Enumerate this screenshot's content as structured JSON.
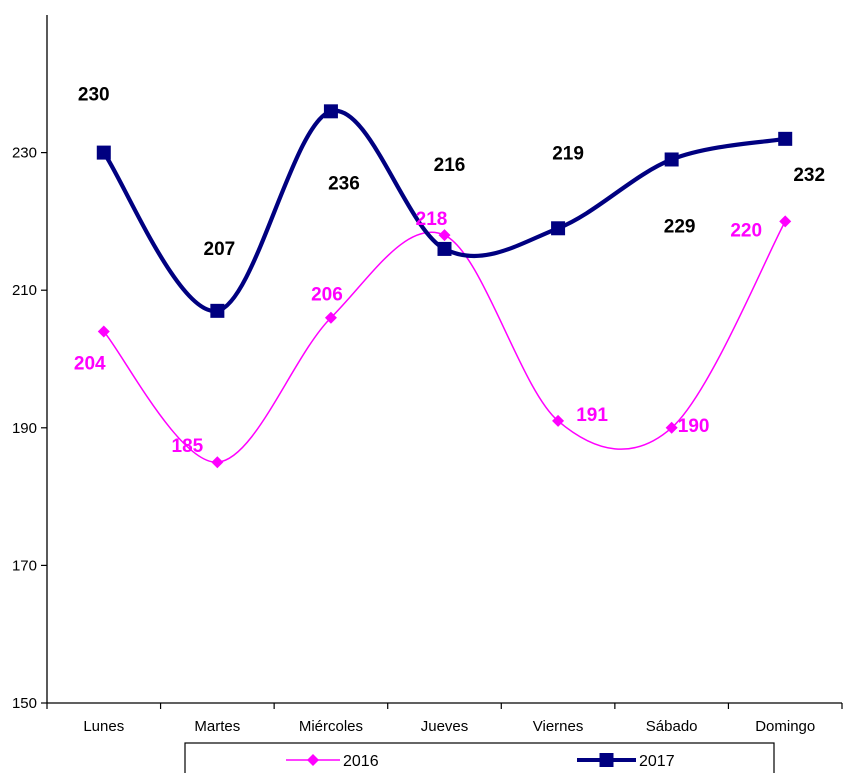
{
  "chart_data": {
    "type": "line",
    "title": "",
    "xlabel": "",
    "ylabel": "",
    "categories": [
      "Lunes",
      "Martes",
      "Miércoles",
      "Jueves",
      "Viernes",
      "Sábado",
      "Domingo"
    ],
    "ylim": [
      150,
      250
    ],
    "yticks": [
      "150",
      "170",
      "190",
      "210",
      "230"
    ],
    "grid": false,
    "smooth": true,
    "legend_position": "bottom",
    "series": [
      {
        "name": "2016",
        "color": "#ff00ff",
        "marker": "diamond",
        "values": [
          204,
          185,
          206,
          218,
          191,
          190,
          220
        ],
        "labels": [
          "204",
          "185",
          "206",
          "218",
          "191",
          "190",
          "220"
        ]
      },
      {
        "name": "2017",
        "color": "#000080",
        "marker": "square",
        "label_color": "#000000",
        "values": [
          230,
          207,
          236,
          216,
          219,
          229,
          232
        ],
        "labels": [
          "230",
          "207",
          "236",
          "216",
          "219",
          "229",
          "232"
        ]
      }
    ]
  }
}
